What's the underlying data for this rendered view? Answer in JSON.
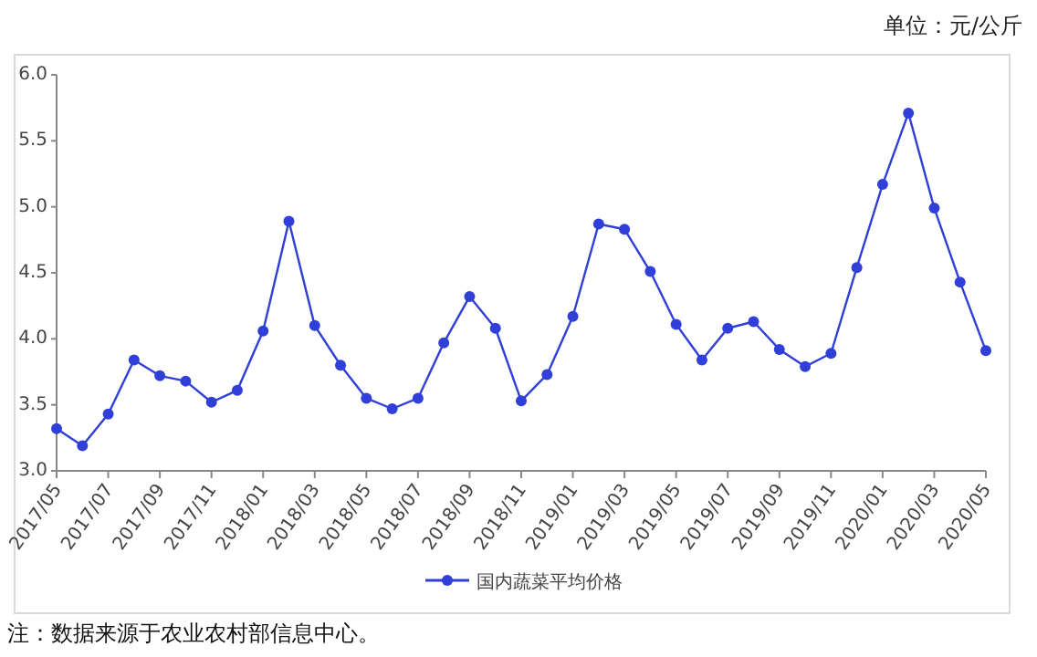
{
  "chart_data": {
    "type": "line",
    "ylabel": "单位：元/公斤",
    "annotations": [
      "注：数据来源于农业农村部信息中心。"
    ],
    "categories": [
      "2017/05",
      null,
      "2017/07",
      null,
      "2017/09",
      null,
      "2017/11",
      null,
      "2018/01",
      null,
      "2018/03",
      null,
      "2018/05",
      null,
      "2018/07",
      null,
      "2018/09",
      null,
      "2018/11",
      null,
      "2019/01",
      null,
      "2019/03",
      null,
      "2019/05",
      null,
      "2019/07",
      null,
      "2019/09",
      null,
      "2019/11",
      null,
      "2020/01",
      null,
      "2020/03",
      null,
      "2020/05"
    ],
    "series": [
      {
        "name": "国内蔬菜平均价格",
        "color": "#2f3fd8",
        "values": [
          3.32,
          3.19,
          3.43,
          3.84,
          3.72,
          3.68,
          3.52,
          3.61,
          4.06,
          4.89,
          4.1,
          3.8,
          3.55,
          3.47,
          3.55,
          3.97,
          4.32,
          4.08,
          3.53,
          3.73,
          4.17,
          4.87,
          4.83,
          4.51,
          4.11,
          3.84,
          4.08,
          4.13,
          3.92,
          3.79,
          3.89,
          4.54,
          5.17,
          5.71,
          4.99,
          4.43,
          3.91
        ]
      }
    ],
    "ylim": [
      3.0,
      6.0
    ],
    "yticks": [
      {
        "value": 3.0,
        "label": "3.0"
      },
      {
        "value": 3.5,
        "label": "3.5"
      },
      {
        "value": 4.0,
        "label": "4.0"
      },
      {
        "value": 4.5,
        "label": "4.5"
      },
      {
        "value": 5.0,
        "label": "5.0"
      },
      {
        "value": 5.5,
        "label": "5.5"
      },
      {
        "value": 6.0,
        "label": "6.0"
      }
    ],
    "legend": "bottom",
    "marker": "circle"
  }
}
